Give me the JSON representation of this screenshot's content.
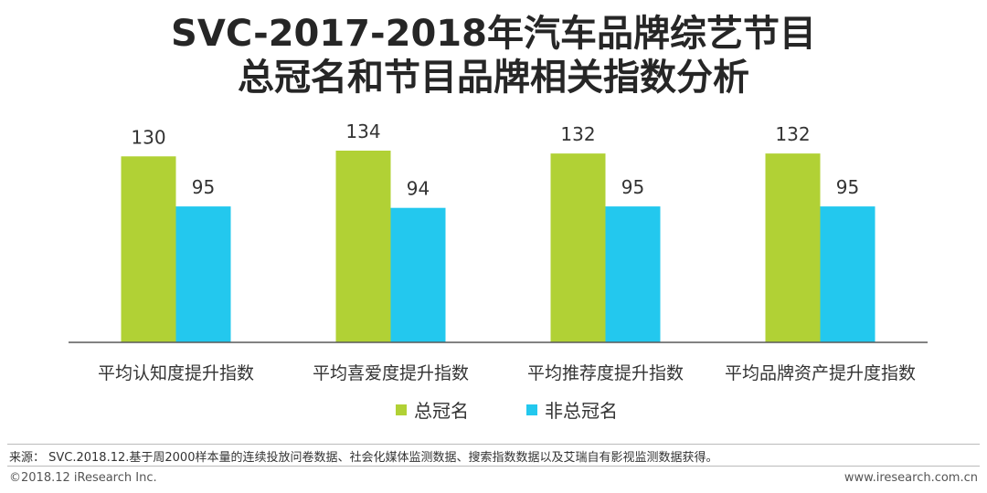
{
  "title_line1": "SVC-2017-2018年汽车品牌综艺节目",
  "title_line2": "总冠名和节目品牌相关指数分析",
  "colors": {
    "series1": "#b1d135",
    "series2": "#23c8ee",
    "axis": "#595959"
  },
  "chart_data": {
    "type": "bar",
    "categories": [
      "平均认知度提升指数",
      "平均喜爱度提升指数",
      "平均推荐度提升指数",
      "平均品牌资产提升度指数"
    ],
    "series": [
      {
        "name": "总冠名",
        "values": [
          130,
          134,
          132,
          132
        ]
      },
      {
        "name": "非总冠名",
        "values": [
          95,
          94,
          95,
          95
        ]
      }
    ],
    "title": "SVC-2017-2018年汽车品牌综艺节目总冠名和节目品牌相关指数分析",
    "xlabel": "",
    "ylabel": "",
    "ylim": [
      0,
      140
    ],
    "grid": false,
    "legend_position": "bottom"
  },
  "footer": {
    "source": "来源： SVC.2018.12.基于周2000样本量的连续投放问卷数据、社会化媒体监测数据、搜索指数数据以及艾瑞自有影视监测数据获得。",
    "copyright": "©2018.12 iResearch Inc.",
    "website": "www.iresearch.com.cn"
  }
}
